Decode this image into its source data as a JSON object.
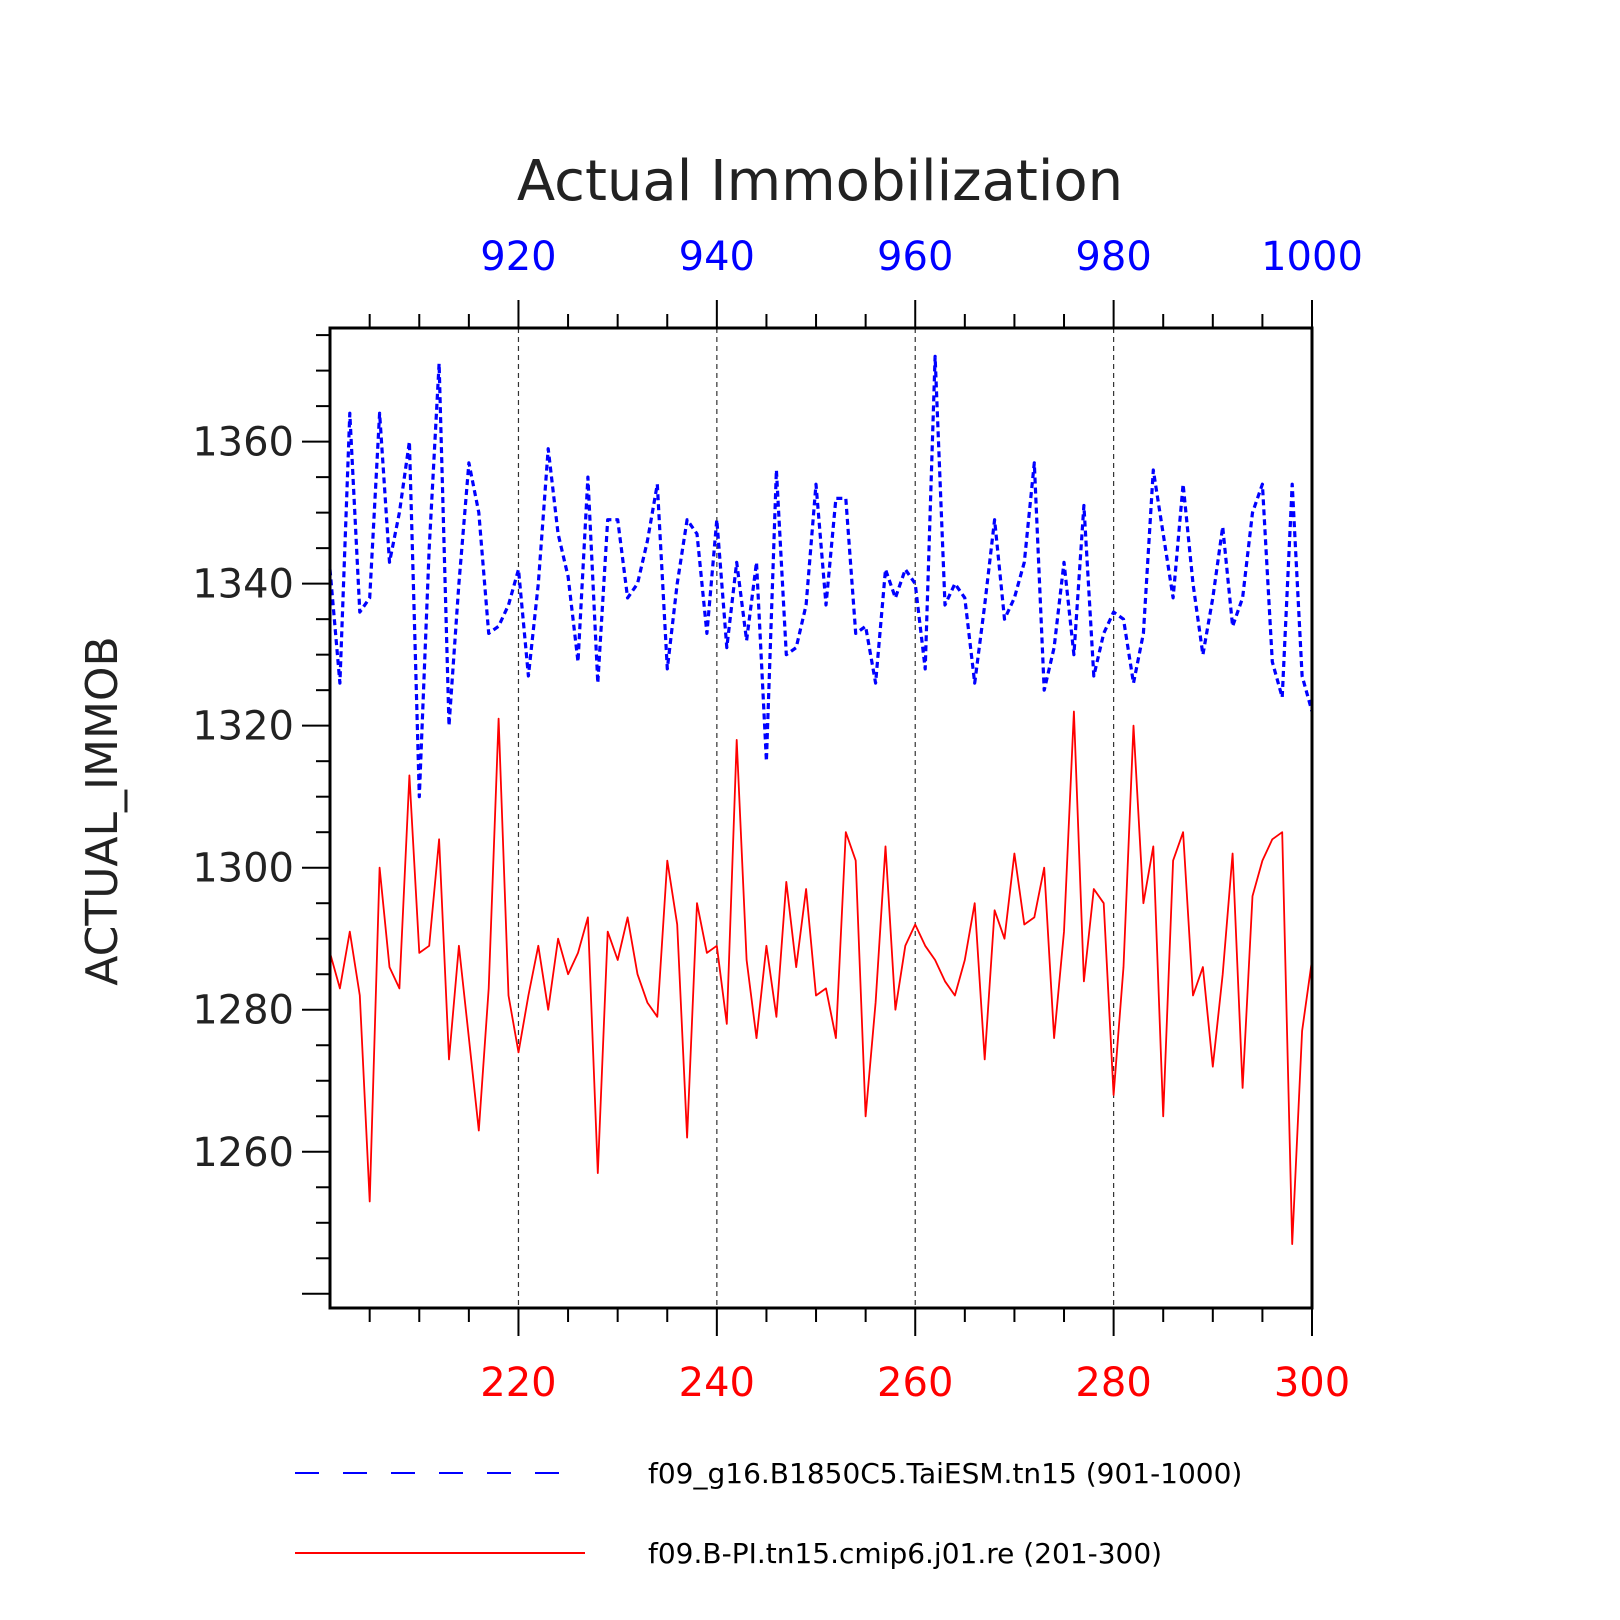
{
  "chart_data": {
    "type": "line",
    "title": "Actual Immobilization",
    "ylabel": "ACTUAL_IMMOB",
    "ylim": [
      1238,
      1376
    ],
    "yticks": [
      1260,
      1280,
      1300,
      1320,
      1340,
      1360
    ],
    "grid": "vertical dashed lines at major x ticks",
    "legend_position": "bottom",
    "top_axis": {
      "range": [
        901,
        1000
      ],
      "ticks": [
        920,
        940,
        960,
        980,
        1000
      ],
      "color": "#0000ff"
    },
    "bottom_axis": {
      "range": [
        201,
        300
      ],
      "ticks": [
        220,
        240,
        260,
        280,
        300
      ],
      "color": "#ff0000"
    },
    "series": [
      {
        "name": "f09_g16.B1850C5.TaiESM.tn15 (901-1000)",
        "axis": "top",
        "color": "#0000ff",
        "style": "dashed",
        "x_start": 901,
        "values": [
          1342,
          1326,
          1364,
          1336,
          1338,
          1364,
          1343,
          1350,
          1360,
          1310,
          1345,
          1371,
          1320,
          1340,
          1357,
          1350,
          1333,
          1334,
          1337,
          1342,
          1327,
          1340,
          1359,
          1347,
          1341,
          1329,
          1355,
          1326,
          1349,
          1349,
          1338,
          1340,
          1346,
          1354,
          1328,
          1340,
          1349,
          1347,
          1333,
          1349,
          1331,
          1343,
          1332,
          1343,
          1315,
          1356,
          1330,
          1331,
          1337,
          1354,
          1337,
          1352,
          1352,
          1333,
          1334,
          1326,
          1342,
          1338,
          1342,
          1340,
          1328,
          1372,
          1337,
          1340,
          1338,
          1326,
          1337,
          1349,
          1335,
          1338,
          1343,
          1357,
          1325,
          1331,
          1343,
          1330,
          1351,
          1327,
          1333,
          1336,
          1335,
          1326,
          1333,
          1356,
          1347,
          1338,
          1354,
          1340,
          1330,
          1338,
          1348,
          1334,
          1338,
          1350,
          1354,
          1329,
          1324,
          1354,
          1327,
          1322
        ]
      },
      {
        "name": "f09.B-PI.tn15.cmip6.j01.re (201-300)",
        "axis": "bottom",
        "color": "#ff0000",
        "style": "solid",
        "x_start": 201,
        "values": [
          1288,
          1283,
          1291,
          1282,
          1253,
          1300,
          1286,
          1283,
          1313,
          1288,
          1289,
          1304,
          1273,
          1289,
          1276,
          1263,
          1283,
          1321,
          1282,
          1274,
          1282,
          1289,
          1280,
          1290,
          1285,
          1288,
          1293,
          1257,
          1291,
          1287,
          1293,
          1285,
          1281,
          1279,
          1301,
          1292,
          1262,
          1295,
          1288,
          1289,
          1278,
          1318,
          1287,
          1276,
          1289,
          1279,
          1298,
          1286,
          1297,
          1282,
          1283,
          1276,
          1305,
          1301,
          1265,
          1281,
          1303,
          1280,
          1289,
          1292,
          1289,
          1287,
          1284,
          1282,
          1287,
          1295,
          1273,
          1294,
          1290,
          1302,
          1292,
          1293,
          1300,
          1276,
          1291,
          1322,
          1284,
          1297,
          1295,
          1268,
          1286,
          1320,
          1295,
          1303,
          1265,
          1301,
          1305,
          1282,
          1286,
          1272,
          1285,
          1302,
          1269,
          1296,
          1301,
          1304,
          1305,
          1247,
          1277,
          1287
        ]
      }
    ]
  }
}
